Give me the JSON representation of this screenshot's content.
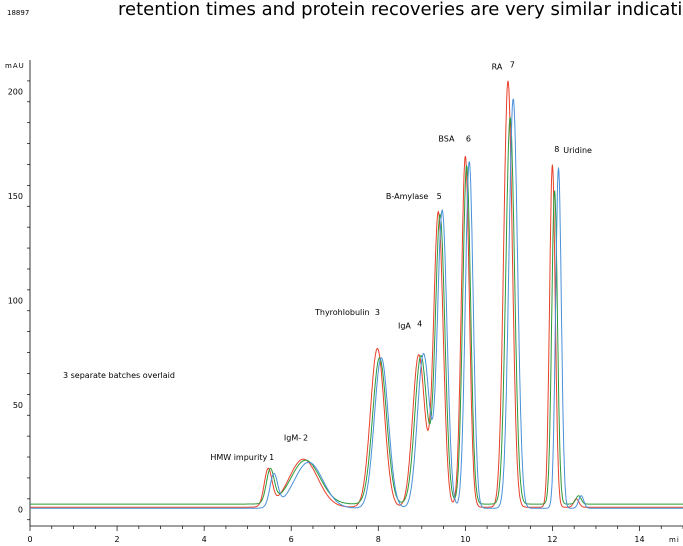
{
  "header": {
    "doc_id": "18897",
    "running_text": "retention times and protein recoveries are very similar indicating that the"
  },
  "chart_data": {
    "type": "line",
    "title": "",
    "ylabel": "mAU",
    "xlabel": "mi",
    "xlim": [
      0,
      15
    ],
    "ylim": [
      -8,
      215
    ],
    "x_ticks": [
      0,
      2,
      4,
      6,
      8,
      10,
      12,
      14
    ],
    "y_ticks": [
      0,
      50,
      100,
      150,
      200
    ],
    "grid": false,
    "legend_text": "3 separate batches overlaid",
    "series": [
      {
        "color": "#e8402a",
        "baseline": 1.0,
        "peaks": [
          [
            5.47,
            17.5,
            0.09
          ],
          [
            6.28,
            23,
            0.33
          ],
          [
            7.98,
            76,
            0.16
          ],
          [
            8.93,
            73,
            0.14
          ],
          [
            9.38,
            141,
            0.11
          ],
          [
            10.0,
            168,
            0.09
          ],
          [
            10.98,
            204,
            0.1
          ],
          [
            12.0,
            164,
            0.065
          ],
          [
            12.55,
            4,
            0.06
          ]
        ]
      },
      {
        "color": "#2a9a3a",
        "baseline": 2.5,
        "peaks": [
          [
            5.52,
            16,
            0.09
          ],
          [
            6.33,
            21,
            0.33
          ],
          [
            8.03,
            70,
            0.16
          ],
          [
            8.98,
            71,
            0.14
          ],
          [
            9.42,
            138,
            0.11
          ],
          [
            10.03,
            162,
            0.09
          ],
          [
            11.03,
            185,
            0.1
          ],
          [
            12.05,
            150,
            0.065
          ],
          [
            12.6,
            4,
            0.06
          ]
        ]
      },
      {
        "color": "#4a90d9",
        "baseline": 0.5,
        "peaks": [
          [
            5.6,
            15.5,
            0.09
          ],
          [
            6.4,
            22,
            0.33
          ],
          [
            8.07,
            72,
            0.16
          ],
          [
            9.04,
            74,
            0.14
          ],
          [
            9.47,
            142,
            0.11
          ],
          [
            10.09,
            166,
            0.09
          ],
          [
            11.1,
            196,
            0.1
          ],
          [
            12.14,
            163,
            0.065
          ],
          [
            12.66,
            6,
            0.06
          ]
        ]
      }
    ],
    "annotations": [
      {
        "label": "HMW impurity",
        "x": 5.45,
        "y": 23.5,
        "anchor": "end"
      },
      {
        "label": "1",
        "x": 5.55,
        "y": 23.5,
        "anchor": "middle"
      },
      {
        "label": "IgM-",
        "x": 6.03,
        "y": 33,
        "anchor": "middle"
      },
      {
        "label": "2",
        "x": 6.33,
        "y": 33,
        "anchor": "middle"
      },
      {
        "label": "Thyrohlobulin",
        "x": 7.8,
        "y": 93,
        "anchor": "end"
      },
      {
        "label": "3",
        "x": 7.98,
        "y": 93,
        "anchor": "middle"
      },
      {
        "label": "IgA",
        "x": 8.75,
        "y": 86.5,
        "anchor": "end"
      },
      {
        "label": "4",
        "x": 8.95,
        "y": 87.5,
        "anchor": "middle"
      },
      {
        "label": "B-Amylase",
        "x": 9.15,
        "y": 148.5,
        "anchor": "end"
      },
      {
        "label": "5",
        "x": 9.4,
        "y": 148.5,
        "anchor": "middle"
      },
      {
        "label": "BSA",
        "x": 9.75,
        "y": 176,
        "anchor": "end"
      },
      {
        "label": "6",
        "x": 10.07,
        "y": 176,
        "anchor": "middle"
      },
      {
        "label": "RA",
        "x": 10.85,
        "y": 210.5,
        "anchor": "end"
      },
      {
        "label": "7",
        "x": 11.08,
        "y": 211.5,
        "anchor": "middle"
      },
      {
        "label": "8",
        "x": 12.1,
        "y": 171,
        "anchor": "middle"
      },
      {
        "label": "Uridine",
        "x": 12.25,
        "y": 170.5,
        "anchor": "start"
      }
    ]
  }
}
